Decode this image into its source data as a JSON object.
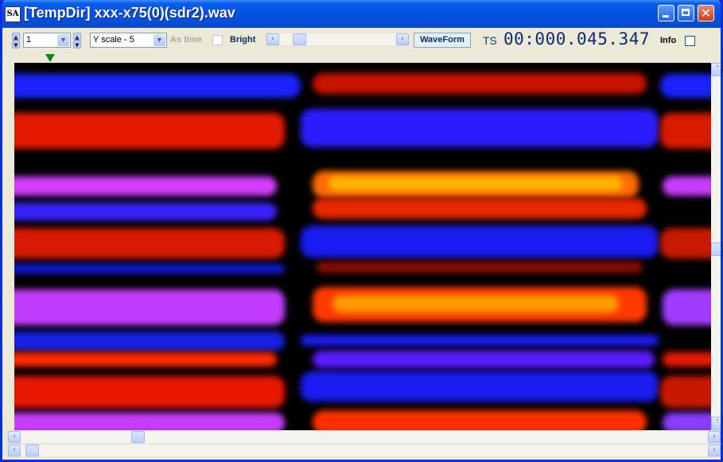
{
  "window": {
    "title": "[TempDir] xxx-x75(0)(sdr2).wav",
    "app_icon_text": "SA",
    "close_glyph": "✕"
  },
  "toolbar": {
    "channel_value": "1",
    "yscale_value": "Y scale - 5",
    "as_time_label": "As time",
    "bright_label": "Bright",
    "waveform_label": "WaveForm",
    "ts_label": "TS",
    "timestamp": "00:000.045.347",
    "info_label": "Info"
  },
  "scroll": {
    "left_arrow": "‹",
    "right_arrow": "›",
    "up_arrow": "˄",
    "down_arrow": "˅",
    "spin_up": "▲",
    "spin_down": "▼",
    "combo_arrow": "▼"
  },
  "spectrogram": {
    "colors": {
      "background": "#000000",
      "blue": "#1a22ff",
      "red": "#ff2a00",
      "orange": "#ff9a00",
      "magenta": "#d43cff"
    }
  }
}
